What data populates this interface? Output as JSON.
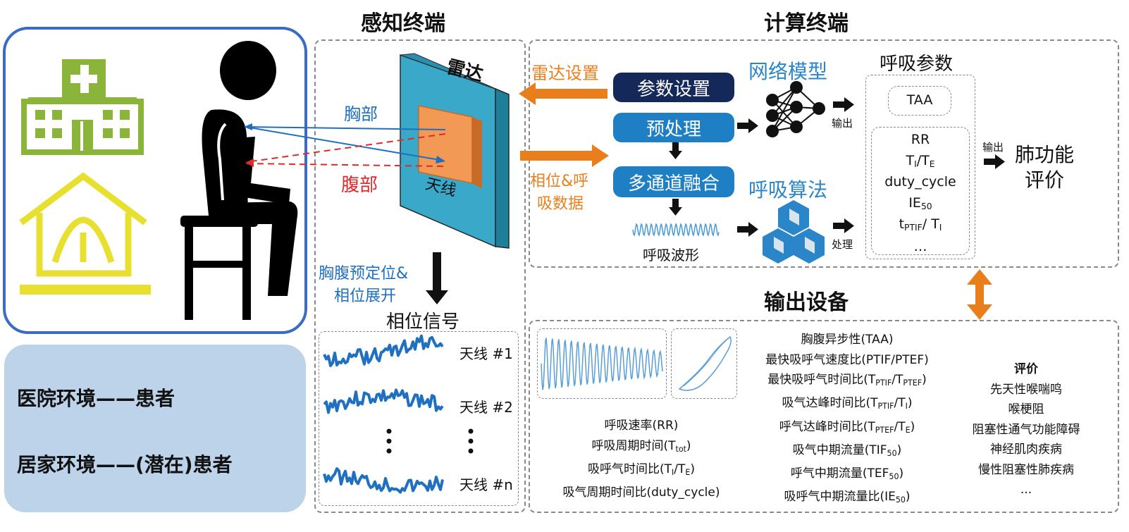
{
  "titles": {
    "sensing": "感知终端",
    "computing": "计算终端",
    "output": "输出设备",
    "resp_params": "呼吸参数"
  },
  "environment": {
    "hospital": "医院环境——患者",
    "home": "居家环境——(潜在)患者"
  },
  "sensing": {
    "radar": "雷达",
    "antenna": "天线",
    "chest": "胸部",
    "abdomen": "腹部",
    "prepos_line1": "胸腹预定位&",
    "prepos_line2": "相位展开",
    "phase_signal": "相位信号",
    "antennas": [
      "天线 #1",
      "天线 #2",
      "天线 #n"
    ]
  },
  "computing": {
    "radar_setting": "雷达设置",
    "phase_data_line1": "相位&呼",
    "phase_data_line2": "吸数据",
    "param_setting": "参数设置",
    "preprocess": "预处理",
    "fusion": "多通道融合",
    "waveform": "呼吸波形",
    "network_model": "网络模型",
    "resp_algorithm": "呼吸算法",
    "output_label": "输出",
    "process_label": "处理",
    "output_label2": "输出",
    "lung_eval_line1": "肺功能",
    "lung_eval_line2": "评价"
  },
  "params": {
    "taa": "TAA",
    "rr": "RR",
    "ti_te": "TI/TE",
    "duty": "duty_cycle",
    "ie50": "IE50",
    "tptif": "tPTIF/ TI",
    "ellipsis": "…"
  },
  "output": {
    "left_list": [
      "呼吸速率(RR)",
      "呼吸周期时间(Ttot)",
      "吸呼气时间比(TI/TE)",
      "吸气周期时间比(duty_cycle)"
    ],
    "mid_list": [
      "胸腹异步性(TAA)",
      "最快吸呼气速度比(PTIF/PTEF)",
      "最快吸呼气时间比(TPTIF/TPTEF)",
      "吸气达峰时间比(TPTIF/TI)",
      "呼气达峰时间比(TPTEF/TE)",
      "吸气中期流量(TIF50)",
      "呼气中期流量(TEF50)",
      "吸呼气中期流量比(IE50)"
    ],
    "eval_title": "评价",
    "eval_list": [
      "先天性喉喘鸣",
      "喉梗阻",
      "阻塞性通气功能障碍",
      "神经肌肉疾病",
      "慢性阻塞性肺疾病",
      "..."
    ]
  },
  "colors": {
    "navy": "#14285a",
    "blue": "#1f7fc4",
    "orange": "#e87f1c",
    "red": "#e02a2a",
    "frame_blue": "#3a6cc6",
    "env_bg": "#bcd3ea",
    "hospital_green": "#8ab43a",
    "house_yellow": "#e8e030",
    "radar_face": "#3aa8c8",
    "antenna_orange": "#f29a55"
  }
}
